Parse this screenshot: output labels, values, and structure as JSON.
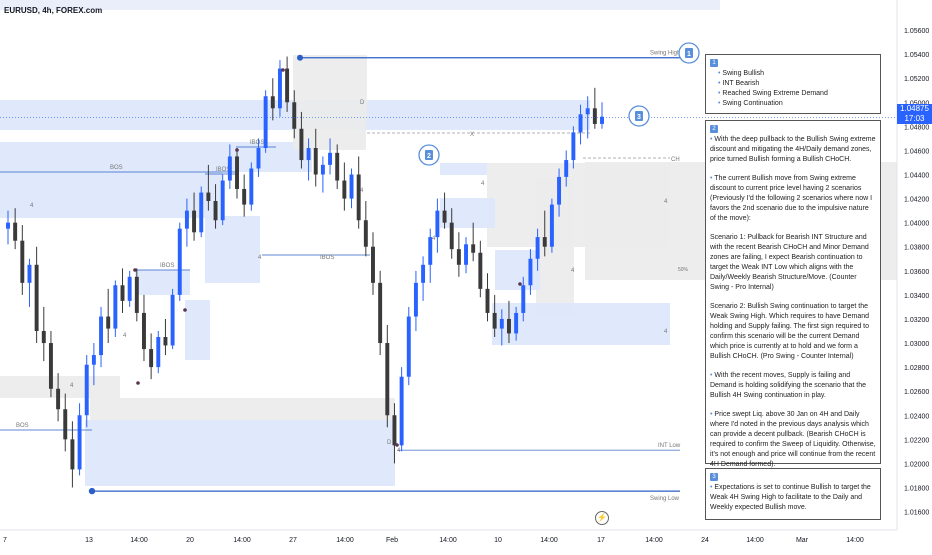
{
  "header": {
    "symbol_line": "EURUSD, 4h, FOREX.com"
  },
  "price_axis": {
    "ticks": [
      "1.05600",
      "1.05400",
      "1.05200",
      "1.05000",
      "1.04800",
      "1.04600",
      "1.04400",
      "1.04200",
      "1.04000",
      "1.03800",
      "1.03600",
      "1.03400",
      "1.03200",
      "1.03000",
      "1.02800",
      "1.02600",
      "1.02400",
      "1.02200",
      "1.02000",
      "1.01800",
      "1.01600"
    ],
    "current_price": "1.04875",
    "countdown": "17:03"
  },
  "time_axis": {
    "ticks": [
      "7",
      "13",
      "14:00",
      "20",
      "14:00",
      "27",
      "14:00",
      "Feb",
      "14:00",
      "10",
      "14:00",
      "17",
      "14:00",
      "24",
      "14:00",
      "Mar",
      "14:00"
    ]
  },
  "colors": {
    "bull": "#2962ff",
    "bear": "#3a3a3a",
    "zone_blue": "#dbe7fb",
    "zone_gray": "#ebebeb",
    "structure_line": "#2b5fc7"
  },
  "chart_data": {
    "type": "candlestick",
    "y_range": [
      1.0148,
      1.0575
    ],
    "structure_labels": {
      "swing_high": "Swing High",
      "swing_low": "Swing Low",
      "int_low": "INT Low",
      "bos": "BOS",
      "ibos": "IBOS",
      "choch": "CH",
      "d": "D",
      "x": "X",
      "four": "4",
      "fifty": "50%"
    },
    "levels": {
      "swing_high": 1.0537,
      "swing_low": 1.0177,
      "int_low": 1.0211
    },
    "markers": [
      "1",
      "2",
      "3"
    ],
    "ohlc": [
      [
        1.0395,
        1.041,
        1.0382,
        1.04
      ],
      [
        1.04,
        1.0412,
        1.0378,
        1.0385
      ],
      [
        1.0385,
        1.0398,
        1.034,
        1.035
      ],
      [
        1.035,
        1.037,
        1.033,
        1.0365
      ],
      [
        1.0365,
        1.038,
        1.03,
        1.031
      ],
      [
        1.031,
        1.033,
        1.0285,
        1.03
      ],
      [
        1.03,
        1.031,
        1.0255,
        1.0262
      ],
      [
        1.0262,
        1.0275,
        1.0235,
        1.0245
      ],
      [
        1.0245,
        1.0258,
        1.021,
        1.022
      ],
      [
        1.022,
        1.0235,
        1.018,
        1.0195
      ],
      [
        1.0195,
        1.025,
        1.019,
        1.024
      ],
      [
        1.024,
        1.029,
        1.023,
        1.0282
      ],
      [
        1.0282,
        1.03,
        1.0265,
        1.029
      ],
      [
        1.029,
        1.033,
        1.028,
        1.0322
      ],
      [
        1.0322,
        1.0345,
        1.03,
        1.0312
      ],
      [
        1.0312,
        1.0352,
        1.0305,
        1.0348
      ],
      [
        1.0348,
        1.0362,
        1.0325,
        1.0335
      ],
      [
        1.0335,
        1.036,
        1.033,
        1.0355
      ],
      [
        1.0355,
        1.0362,
        1.0318,
        1.0325
      ],
      [
        1.0325,
        1.034,
        1.0285,
        1.0295
      ],
      [
        1.0295,
        1.0308,
        1.027,
        1.028
      ],
      [
        1.028,
        1.031,
        1.0275,
        1.0305
      ],
      [
        1.0305,
        1.032,
        1.029,
        1.0298
      ],
      [
        1.0298,
        1.0345,
        1.0295,
        1.034
      ],
      [
        1.034,
        1.04,
        1.0335,
        1.0395
      ],
      [
        1.0395,
        1.042,
        1.038,
        1.041
      ],
      [
        1.041,
        1.0425,
        1.0385,
        1.0392
      ],
      [
        1.0392,
        1.043,
        1.0388,
        1.0425
      ],
      [
        1.0425,
        1.0448,
        1.041,
        1.0418
      ],
      [
        1.0418,
        1.0432,
        1.0395,
        1.0402
      ],
      [
        1.0402,
        1.044,
        1.0398,
        1.0435
      ],
      [
        1.0435,
        1.0465,
        1.0428,
        1.0455
      ],
      [
        1.0455,
        1.0462,
        1.042,
        1.0428
      ],
      [
        1.0428,
        1.044,
        1.0405,
        1.0415
      ],
      [
        1.0415,
        1.045,
        1.041,
        1.0445
      ],
      [
        1.0445,
        1.047,
        1.0438,
        1.0462
      ],
      [
        1.0462,
        1.051,
        1.0458,
        1.0505
      ],
      [
        1.0505,
        1.052,
        1.0485,
        1.0495
      ],
      [
        1.0495,
        1.0535,
        1.0488,
        1.0528
      ],
      [
        1.0528,
        1.0538,
        1.0492,
        1.05
      ],
      [
        1.05,
        1.051,
        1.047,
        1.0478
      ],
      [
        1.0478,
        1.0492,
        1.0445,
        1.0452
      ],
      [
        1.0452,
        1.047,
        1.0435,
        1.0462
      ],
      [
        1.0462,
        1.0478,
        1.043,
        1.044
      ],
      [
        1.044,
        1.0455,
        1.0425,
        1.0448
      ],
      [
        1.0448,
        1.047,
        1.044,
        1.0458
      ],
      [
        1.0458,
        1.0465,
        1.0428,
        1.0435
      ],
      [
        1.0435,
        1.045,
        1.041,
        1.042
      ],
      [
        1.042,
        1.0445,
        1.0412,
        1.044
      ],
      [
        1.044,
        1.0455,
        1.0395,
        1.0402
      ],
      [
        1.0402,
        1.0418,
        1.0372,
        1.038
      ],
      [
        1.038,
        1.0392,
        1.034,
        1.035
      ],
      [
        1.035,
        1.036,
        1.029,
        1.03
      ],
      [
        1.03,
        1.0315,
        1.023,
        1.024
      ],
      [
        1.024,
        1.025,
        1.02,
        1.0215
      ],
      [
        1.0215,
        1.028,
        1.021,
        1.0272
      ],
      [
        1.0272,
        1.033,
        1.0265,
        1.0322
      ],
      [
        1.0322,
        1.036,
        1.031,
        1.035
      ],
      [
        1.035,
        1.0372,
        1.0335,
        1.0365
      ],
      [
        1.0365,
        1.0395,
        1.035,
        1.0388
      ],
      [
        1.0388,
        1.042,
        1.0375,
        1.041
      ],
      [
        1.041,
        1.0425,
        1.0395,
        1.04
      ],
      [
        1.04,
        1.0412,
        1.037,
        1.0378
      ],
      [
        1.0378,
        1.0392,
        1.0355,
        1.0365
      ],
      [
        1.0365,
        1.0388,
        1.0358,
        1.0382
      ],
      [
        1.0382,
        1.04,
        1.0368,
        1.0375
      ],
      [
        1.0375,
        1.0385,
        1.0338,
        1.0345
      ],
      [
        1.0345,
        1.0358,
        1.0318,
        1.0325
      ],
      [
        1.0325,
        1.034,
        1.0305,
        1.0312
      ],
      [
        1.0312,
        1.0328,
        1.0298,
        1.032
      ],
      [
        1.032,
        1.0335,
        1.03,
        1.0308
      ],
      [
        1.0308,
        1.033,
        1.0302,
        1.0325
      ],
      [
        1.0325,
        1.0355,
        1.0318,
        1.0348
      ],
      [
        1.0348,
        1.0378,
        1.034,
        1.037
      ],
      [
        1.037,
        1.0395,
        1.036,
        1.0388
      ],
      [
        1.0388,
        1.041,
        1.0372,
        1.038
      ],
      [
        1.038,
        1.042,
        1.0375,
        1.0415
      ],
      [
        1.0415,
        1.0445,
        1.0405,
        1.0438
      ],
      [
        1.0438,
        1.046,
        1.043,
        1.0452
      ],
      [
        1.0452,
        1.048,
        1.0445,
        1.0475
      ],
      [
        1.0475,
        1.0498,
        1.0465,
        1.049
      ],
      [
        1.049,
        1.0505,
        1.047,
        1.0495
      ],
      [
        1.0495,
        1.0512,
        1.0478,
        1.0482
      ],
      [
        1.0482,
        1.05,
        1.0478,
        1.0488
      ]
    ]
  },
  "notes": {
    "box1": {
      "badge": "1",
      "items": [
        "Swing Bullish",
        "INT Bearish",
        "Reached Swing Extreme Demand",
        "Swing Continuation"
      ]
    },
    "box2": {
      "badge": "2",
      "paragraphs": [
        "With the deep pullback to the Bullish Swing extreme discount and mitigating the 4H/Daily demand zones, price turned Bullish forming a Bullish CHoCH.",
        "The current Bullish move from Swing extreme discount to current price level having 2 scenarios (Previously I'd the following 2 scenarios where now I favors the 2nd scenario due to the impulsive nature of the move):",
        "Scenario 1: Pullback for Bearish INT Structure and with the recent Bearish CHoCH and Minor Demand zones are failing, I expect Bearish continuation to target the Weak INT Low which aligns with the Daily/Weekly Bearish Structure/Move. (Counter Swing - Pro Internal)",
        "Scenario 2: Bullish Swing continuation to target the Weak Swing High. Which requires to have Demand holding and Supply failing. The first sign required to confirm this scenario will be the current Demand which price is currently at to hold and we form a Bullish CHoCH. (Pro Swing - Counter Internal)",
        "With the recent moves, Supply is failing and Demand is holding solidifying the scenario that the Bullish 4H Swing continuation in play.",
        "Price swept Liq. above 30 Jan on 4H and Daily where I'd noted in the previous days analysis which can provide a decent pullback. (Bearish CHoCH is required to confirm the Sweep of Liquidity. Otherwise, it's not enough and price will continue from the recent 4H Demand formed)."
      ]
    },
    "box3": {
      "badge": "3",
      "text": "Expectations is set to continue Bullish to target the Weak 4H Swing High to facilitate to the Daily and Weekly expected Bullish move."
    }
  }
}
